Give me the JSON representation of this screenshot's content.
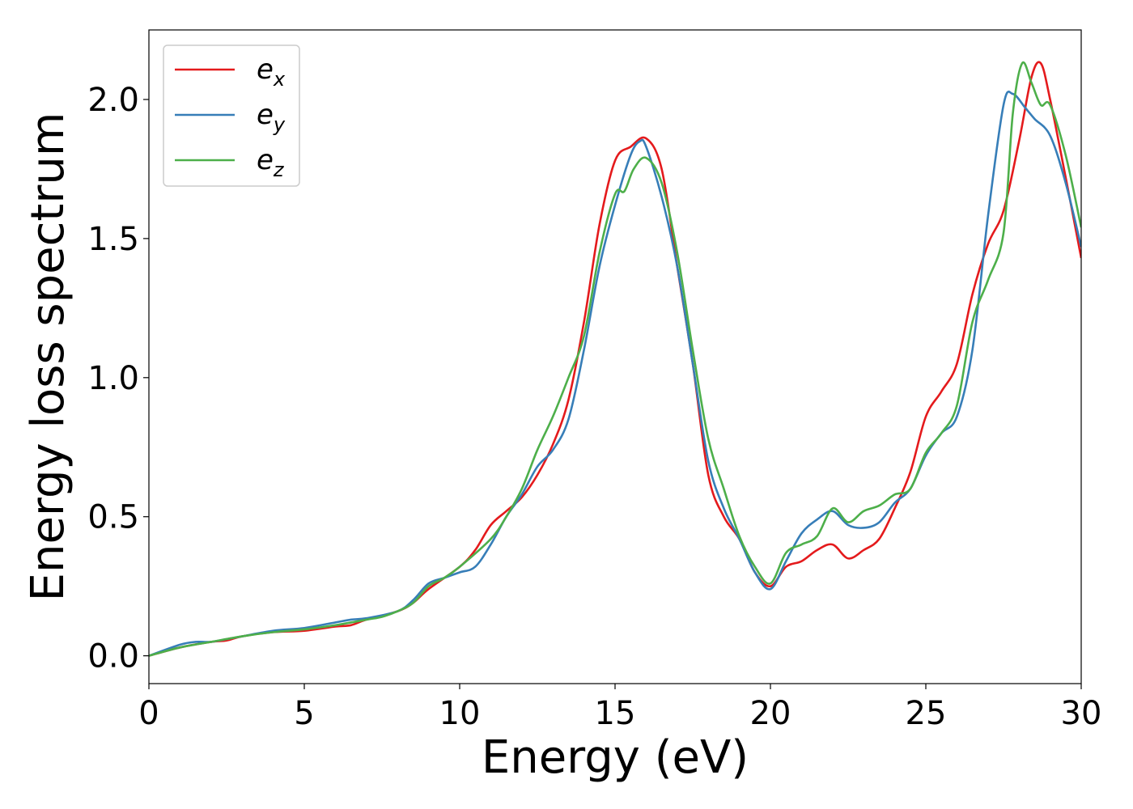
{
  "chart_data": {
    "type": "line",
    "title": "",
    "xlabel": "Energy (eV)",
    "ylabel": "Energy loss spectrum",
    "xlim": [
      0,
      30
    ],
    "ylim": [
      -0.1,
      2.25
    ],
    "xticks": [
      0,
      5,
      10,
      15,
      20,
      25,
      30
    ],
    "xtick_labels": [
      "0",
      "5",
      "10",
      "15",
      "20",
      "25",
      "30"
    ],
    "yticks": [
      0.0,
      0.5,
      1.0,
      1.5,
      2.0
    ],
    "ytick_labels": [
      "0.0",
      "0.5",
      "1.0",
      "1.5",
      "2.0"
    ],
    "grid": false,
    "legend_position": "top-left",
    "series": [
      {
        "name": "e_x",
        "legend_base": "e",
        "legend_sub": "x",
        "color": "#e41a1c",
        "points": [
          [
            0,
            0
          ],
          [
            1,
            0.03
          ],
          [
            2,
            0.05
          ],
          [
            2.5,
            0.055
          ],
          [
            3,
            0.07
          ],
          [
            4,
            0.085
          ],
          [
            5,
            0.09
          ],
          [
            6,
            0.105
          ],
          [
            6.5,
            0.11
          ],
          [
            7,
            0.13
          ],
          [
            8,
            0.16
          ],
          [
            8.5,
            0.19
          ],
          [
            9,
            0.24
          ],
          [
            10,
            0.32
          ],
          [
            10.5,
            0.38
          ],
          [
            11,
            0.47
          ],
          [
            11.5,
            0.52
          ],
          [
            12,
            0.57
          ],
          [
            12.5,
            0.65
          ],
          [
            13,
            0.76
          ],
          [
            13.5,
            0.92
          ],
          [
            14,
            1.2
          ],
          [
            14.5,
            1.55
          ],
          [
            15,
            1.78
          ],
          [
            15.5,
            1.83
          ],
          [
            16,
            1.86
          ],
          [
            16.5,
            1.75
          ],
          [
            17,
            1.4
          ],
          [
            17.5,
            1.05
          ],
          [
            18,
            0.65
          ],
          [
            18.5,
            0.5
          ],
          [
            19,
            0.42
          ],
          [
            19.5,
            0.3
          ],
          [
            20,
            0.25
          ],
          [
            20.5,
            0.32
          ],
          [
            21,
            0.34
          ],
          [
            21.5,
            0.38
          ],
          [
            22,
            0.4
          ],
          [
            22.5,
            0.35
          ],
          [
            23,
            0.38
          ],
          [
            23.5,
            0.42
          ],
          [
            24,
            0.53
          ],
          [
            24.5,
            0.66
          ],
          [
            25,
            0.86
          ],
          [
            25.5,
            0.95
          ],
          [
            26,
            1.05
          ],
          [
            26.5,
            1.3
          ],
          [
            27,
            1.48
          ],
          [
            27.5,
            1.6
          ],
          [
            28,
            1.85
          ],
          [
            28.4,
            2.08
          ],
          [
            28.7,
            2.13
          ],
          [
            29,
            2.0
          ],
          [
            29.5,
            1.72
          ],
          [
            30,
            1.43
          ]
        ]
      },
      {
        "name": "e_y",
        "legend_base": "e",
        "legend_sub": "y",
        "color": "#377eb8",
        "points": [
          [
            0,
            0
          ],
          [
            1,
            0.04
          ],
          [
            1.5,
            0.05
          ],
          [
            2,
            0.05
          ],
          [
            2.5,
            0.06
          ],
          [
            3,
            0.07
          ],
          [
            4,
            0.09
          ],
          [
            5,
            0.1
          ],
          [
            6,
            0.12
          ],
          [
            6.5,
            0.13
          ],
          [
            7,
            0.135
          ],
          [
            8,
            0.16
          ],
          [
            8.5,
            0.2
          ],
          [
            9,
            0.26
          ],
          [
            9.5,
            0.28
          ],
          [
            10,
            0.3
          ],
          [
            10.5,
            0.32
          ],
          [
            11,
            0.4
          ],
          [
            11.5,
            0.5
          ],
          [
            12,
            0.58
          ],
          [
            12.5,
            0.68
          ],
          [
            13,
            0.74
          ],
          [
            13.5,
            0.85
          ],
          [
            14,
            1.1
          ],
          [
            14.5,
            1.4
          ],
          [
            15,
            1.62
          ],
          [
            15.5,
            1.8
          ],
          [
            15.8,
            1.85
          ],
          [
            16,
            1.83
          ],
          [
            16.5,
            1.65
          ],
          [
            17,
            1.4
          ],
          [
            17.5,
            1.05
          ],
          [
            18,
            0.7
          ],
          [
            18.5,
            0.53
          ],
          [
            19,
            0.42
          ],
          [
            19.5,
            0.3
          ],
          [
            20,
            0.24
          ],
          [
            20.5,
            0.34
          ],
          [
            21,
            0.44
          ],
          [
            21.5,
            0.49
          ],
          [
            22,
            0.52
          ],
          [
            22.5,
            0.47
          ],
          [
            23,
            0.46
          ],
          [
            23.5,
            0.48
          ],
          [
            24,
            0.55
          ],
          [
            24.5,
            0.6
          ],
          [
            25,
            0.72
          ],
          [
            25.5,
            0.8
          ],
          [
            26,
            0.86
          ],
          [
            26.5,
            1.1
          ],
          [
            27,
            1.58
          ],
          [
            27.5,
            1.98
          ],
          [
            27.8,
            2.02
          ],
          [
            28.2,
            1.97
          ],
          [
            28.5,
            1.93
          ],
          [
            29,
            1.87
          ],
          [
            29.5,
            1.7
          ],
          [
            30,
            1.47
          ]
        ]
      },
      {
        "name": "e_z",
        "legend_base": "e",
        "legend_sub": "z",
        "color": "#4daf4a",
        "points": [
          [
            0,
            0
          ],
          [
            1,
            0.03
          ],
          [
            2,
            0.05
          ],
          [
            3,
            0.07
          ],
          [
            4,
            0.085
          ],
          [
            5,
            0.095
          ],
          [
            6,
            0.11
          ],
          [
            7,
            0.13
          ],
          [
            7.5,
            0.14
          ],
          [
            8,
            0.16
          ],
          [
            8.5,
            0.19
          ],
          [
            9,
            0.25
          ],
          [
            9.5,
            0.28
          ],
          [
            10,
            0.32
          ],
          [
            11,
            0.42
          ],
          [
            11.5,
            0.5
          ],
          [
            12,
            0.6
          ],
          [
            12.5,
            0.74
          ],
          [
            13,
            0.86
          ],
          [
            13.5,
            1.0
          ],
          [
            14,
            1.15
          ],
          [
            14.5,
            1.45
          ],
          [
            15,
            1.66
          ],
          [
            15.3,
            1.67
          ],
          [
            15.6,
            1.75
          ],
          [
            16,
            1.79
          ],
          [
            16.5,
            1.7
          ],
          [
            17,
            1.45
          ],
          [
            17.5,
            1.1
          ],
          [
            18,
            0.78
          ],
          [
            18.5,
            0.6
          ],
          [
            19,
            0.43
          ],
          [
            19.5,
            0.32
          ],
          [
            20,
            0.26
          ],
          [
            20.5,
            0.37
          ],
          [
            21,
            0.4
          ],
          [
            21.5,
            0.43
          ],
          [
            22,
            0.53
          ],
          [
            22.5,
            0.48
          ],
          [
            23,
            0.52
          ],
          [
            23.5,
            0.54
          ],
          [
            24,
            0.58
          ],
          [
            24.5,
            0.6
          ],
          [
            25,
            0.73
          ],
          [
            25.5,
            0.8
          ],
          [
            26,
            0.9
          ],
          [
            26.5,
            1.2
          ],
          [
            27,
            1.35
          ],
          [
            27.5,
            1.52
          ],
          [
            27.8,
            1.95
          ],
          [
            28.1,
            2.13
          ],
          [
            28.4,
            2.06
          ],
          [
            28.7,
            1.98
          ],
          [
            29,
            1.98
          ],
          [
            29.5,
            1.8
          ],
          [
            30,
            1.54
          ]
        ]
      }
    ]
  }
}
